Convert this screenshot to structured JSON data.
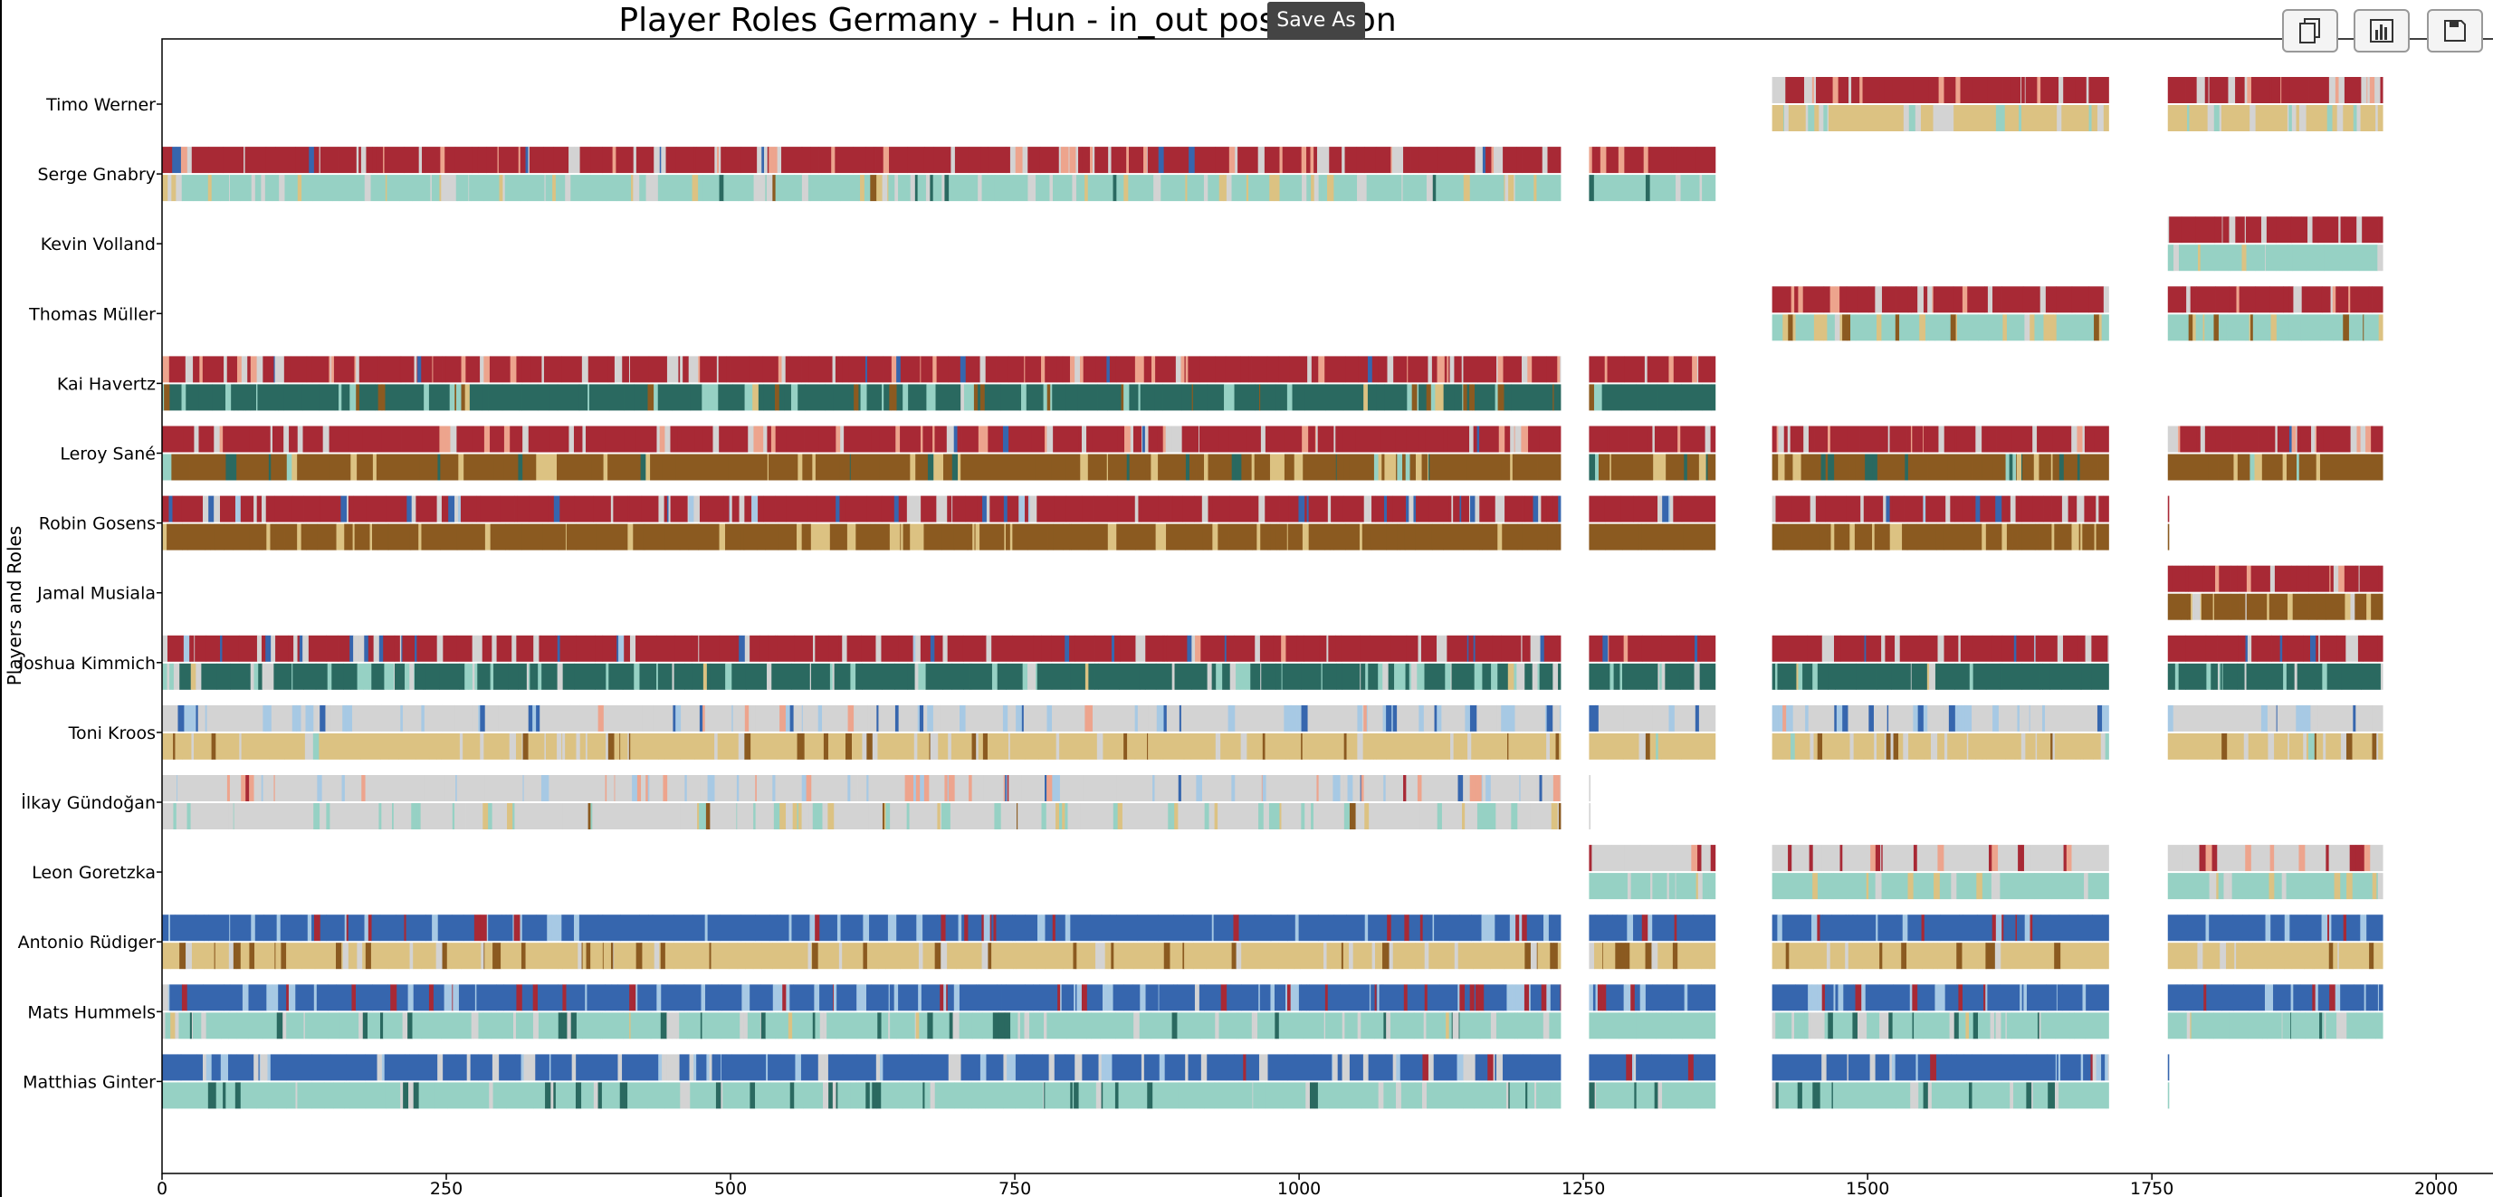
{
  "toolbar": {
    "tooltip_label": "Save As",
    "buttons": [
      {
        "name": "copy-button",
        "icon": "copy-icon"
      },
      {
        "name": "chart-button",
        "icon": "bar-chart-icon"
      },
      {
        "name": "save-button",
        "icon": "floppy-disk-icon"
      }
    ]
  },
  "chart_data": {
    "type": "bar",
    "subtype": "timeline-strips",
    "title": "Player Roles Germany - Hun - in_out possession",
    "ylabel": "Players and Roles",
    "xlim": [
      0,
      2050
    ],
    "xticks": [
      0,
      250,
      500,
      750,
      1000,
      1250,
      1500,
      1750,
      2000
    ],
    "grid": false,
    "legend": "none",
    "palette": {
      "red": "#a82935",
      "salmon": "#eda48d",
      "gray": "#d3d3d3",
      "light_blue": "#a7c9e4",
      "blue": "#3666ae",
      "teal_light": "#96d1c4",
      "teal_dark": "#2a6960",
      "tan": "#dcc282",
      "brown": "#8b5a20"
    },
    "players": [
      {
        "name": "Timo Werner",
        "segments": [
          [
            1416,
            1712
          ],
          [
            1764,
            1953
          ]
        ],
        "in_possession": [
          "red",
          "gray",
          "salmon"
        ],
        "out_possession": [
          "tan",
          "gray",
          "teal_light",
          "light_blue"
        ]
      },
      {
        "name": "Serge Gnabry",
        "segments": [
          [
            0,
            1230
          ],
          [
            1255,
            1366
          ]
        ],
        "in_possession": [
          "red",
          "gray",
          "salmon",
          "blue"
        ],
        "out_possession": [
          "teal_light",
          "gray",
          "tan",
          "brown",
          "teal_dark"
        ]
      },
      {
        "name": "Kevin Volland",
        "segments": [
          [
            1764,
            1953
          ]
        ],
        "in_possession": [
          "red",
          "gray"
        ],
        "out_possession": [
          "teal_light",
          "gray",
          "tan"
        ]
      },
      {
        "name": "Thomas Müller",
        "segments": [
          [
            1416,
            1712
          ],
          [
            1764,
            1953
          ]
        ],
        "in_possession": [
          "red",
          "gray",
          "salmon"
        ],
        "out_possession": [
          "teal_light",
          "tan",
          "brown",
          "gray"
        ]
      },
      {
        "name": "Kai Havertz",
        "segments": [
          [
            0,
            1230
          ],
          [
            1255,
            1366
          ]
        ],
        "in_possession": [
          "red",
          "gray",
          "salmon",
          "blue"
        ],
        "out_possession": [
          "teal_dark",
          "teal_light",
          "brown",
          "tan",
          "gray"
        ]
      },
      {
        "name": "Leroy Sané",
        "segments": [
          [
            0,
            1230
          ],
          [
            1255,
            1366
          ],
          [
            1416,
            1712
          ],
          [
            1764,
            1953
          ]
        ],
        "in_possession": [
          "red",
          "gray",
          "salmon",
          "blue"
        ],
        "out_possession": [
          "brown",
          "tan",
          "teal_dark",
          "teal_light"
        ]
      },
      {
        "name": "Robin Gosens",
        "segments": [
          [
            0,
            1230
          ],
          [
            1255,
            1366
          ],
          [
            1416,
            1712
          ],
          [
            1764,
            1765
          ]
        ],
        "in_possession": [
          "red",
          "gray",
          "blue",
          "light_blue"
        ],
        "out_possession": [
          "brown",
          "tan"
        ]
      },
      {
        "name": "Jamal Musiala",
        "segments": [
          [
            1764,
            1953
          ]
        ],
        "in_possession": [
          "red",
          "gray",
          "salmon"
        ],
        "out_possession": [
          "brown",
          "tan",
          "gray"
        ]
      },
      {
        "name": "Joshua Kimmich",
        "segments": [
          [
            0,
            1230
          ],
          [
            1255,
            1366
          ],
          [
            1416,
            1712
          ],
          [
            1764,
            1953
          ]
        ],
        "in_possession": [
          "red",
          "gray",
          "blue",
          "light_blue",
          "salmon"
        ],
        "out_possession": [
          "teal_dark",
          "teal_light",
          "gray",
          "tan"
        ]
      },
      {
        "name": "Toni Kroos",
        "segments": [
          [
            0,
            1230
          ],
          [
            1255,
            1366
          ],
          [
            1416,
            1712
          ],
          [
            1764,
            1953
          ]
        ],
        "in_possession": [
          "gray",
          "light_blue",
          "blue",
          "salmon"
        ],
        "out_possession": [
          "tan",
          "gray",
          "brown",
          "teal_light"
        ]
      },
      {
        "name": "İlkay Gündoğan",
        "segments": [
          [
            0,
            1230
          ],
          [
            1255,
            1256
          ]
        ],
        "in_possession": [
          "gray",
          "light_blue",
          "salmon",
          "red",
          "blue"
        ],
        "out_possession": [
          "gray",
          "teal_light",
          "tan",
          "brown"
        ]
      },
      {
        "name": "Leon Goretzka",
        "segments": [
          [
            1255,
            1366
          ],
          [
            1416,
            1712
          ],
          [
            1764,
            1953
          ]
        ],
        "in_possession": [
          "gray",
          "red",
          "salmon",
          "light_blue"
        ],
        "out_possession": [
          "teal_light",
          "gray",
          "tan"
        ]
      },
      {
        "name": "Antonio Rüdiger",
        "segments": [
          [
            0,
            1230
          ],
          [
            1255,
            1366
          ],
          [
            1416,
            1712
          ],
          [
            1764,
            1953
          ]
        ],
        "in_possession": [
          "blue",
          "light_blue",
          "red"
        ],
        "out_possession": [
          "tan",
          "brown",
          "gray"
        ]
      },
      {
        "name": "Mats Hummels",
        "segments": [
          [
            0,
            1230
          ],
          [
            1255,
            1366
          ],
          [
            1416,
            1712
          ],
          [
            1764,
            1953
          ]
        ],
        "in_possession": [
          "blue",
          "light_blue",
          "red",
          "gray"
        ],
        "out_possession": [
          "teal_light",
          "gray",
          "teal_dark",
          "tan"
        ]
      },
      {
        "name": "Matthias Ginter",
        "segments": [
          [
            0,
            1230
          ],
          [
            1255,
            1366
          ],
          [
            1416,
            1712
          ],
          [
            1764,
            1765
          ]
        ],
        "in_possession": [
          "blue",
          "gray",
          "light_blue",
          "red"
        ],
        "out_possession": [
          "teal_light",
          "teal_dark",
          "gray"
        ]
      }
    ]
  }
}
